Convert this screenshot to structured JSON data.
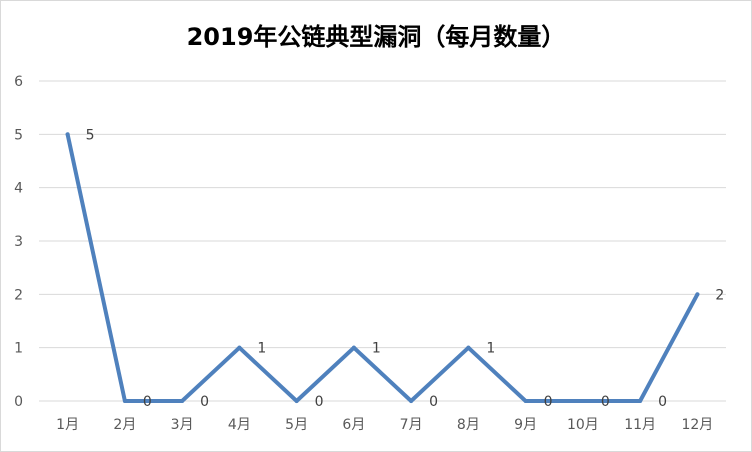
{
  "chart_data": {
    "type": "line",
    "title": "2019年公链典型漏洞（每月数量）",
    "categories": [
      "1月",
      "2月",
      "3月",
      "4月",
      "5月",
      "6月",
      "7月",
      "8月",
      "9月",
      "10月",
      "11月",
      "12月"
    ],
    "values": [
      5,
      0,
      0,
      1,
      0,
      1,
      0,
      1,
      0,
      0,
      0,
      2
    ],
    "y_ticks": [
      "0",
      "1",
      "2",
      "3",
      "4",
      "5",
      "6"
    ],
    "ylim": [
      0,
      6
    ],
    "grid": true,
    "data_labels": true,
    "line_color": "#4f81bd",
    "grid_color": "#d9d9d9"
  }
}
